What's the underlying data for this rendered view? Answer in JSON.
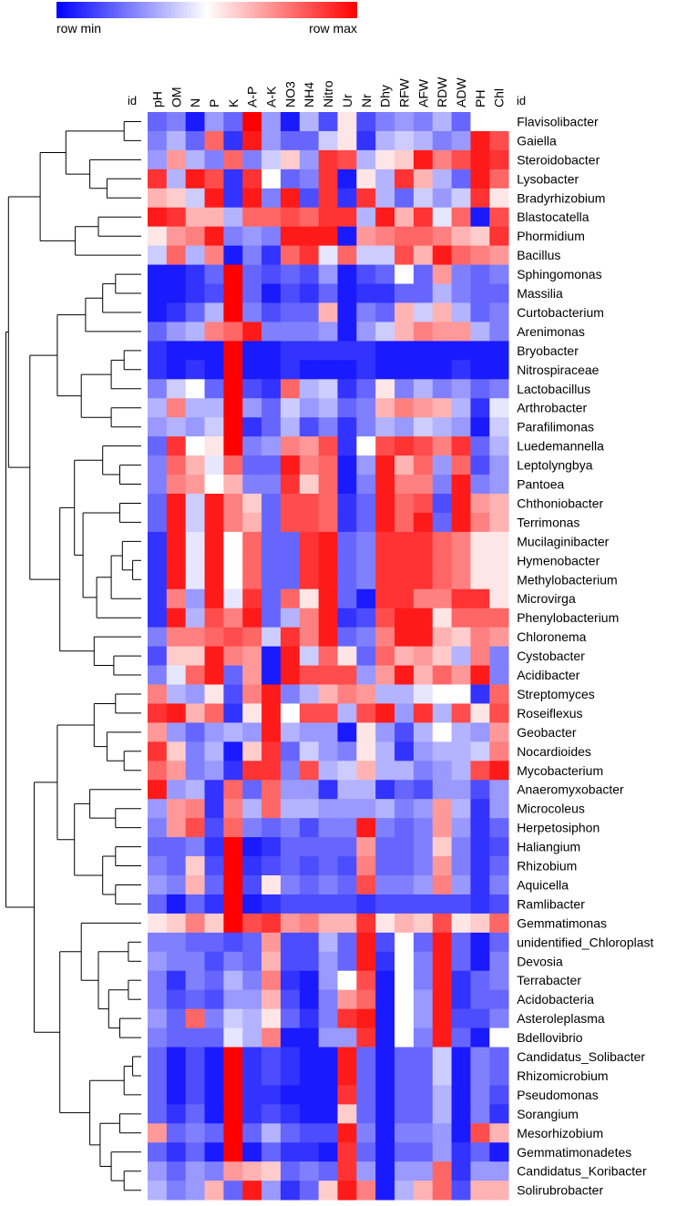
{
  "chart_data": {
    "type": "heatmap",
    "title": "",
    "legend": {
      "min_label": "row min",
      "max_label": "row max",
      "placement": "top-left"
    },
    "colors": {
      "low": "#0000ff",
      "mid": "#ffffff",
      "high": "#ff0000"
    },
    "id_label": "id",
    "columns": [
      "pH",
      "OM",
      "N",
      "P",
      "K",
      "A-P",
      "A-K",
      "NO3",
      "NH4",
      "Nitro",
      "Ur",
      "Nr",
      "Dhy",
      "RFW",
      "AFW",
      "RDW",
      "ADW",
      "PH",
      "Chl"
    ],
    "rows": [
      "Flavisolibacter",
      "Gaiella",
      "Steroidobacter",
      "Lysobacter",
      "Bradyrhizobium",
      "Blastocatella",
      "Phormidium",
      "Bacillus",
      "Sphingomonas",
      "Massilia",
      "Curtobacterium",
      "Arenimonas",
      "Bryobacter",
      "Nitrospiraceae",
      "Lactobacillus",
      "Arthrobacter",
      "Parafilimonas",
      "Luedemannella",
      "Leptolyngbya",
      "Pantoea",
      "Chthoniobacter",
      "Terrimonas",
      "Mucilaginibacter",
      "Hymenobacter",
      "Methylobacterium",
      "Microvirga",
      "Phenylobacterium",
      "Chloronema",
      "Cystobacter",
      "Acidibacter",
      "Streptomyces",
      "Roseiflexus",
      "Geobacter",
      "Nocardioides",
      "Mycobacterium",
      "Anaeromyxobacter",
      "Microcoleus",
      "Herpetosiphon",
      "Haliangium",
      "Rhizobium",
      "Aquicella",
      "Ramlibacter",
      "Gemmatimonas",
      "unidentified_Chloroplast",
      "Devosia",
      "Terrabacter",
      "Acidobacteria",
      "Asteroleplasma",
      "Bdellovibrio",
      "Candidatus_Solibacter",
      "Rhizomicrobium",
      "Pseudomonas",
      "Sorangium",
      "Mesorhizobium",
      "Gemmatimonadetes",
      "Candidatus_Koribacter",
      "Solirubrobacter"
    ],
    "values": [
      [
        -0.6,
        -0.5,
        -0.9,
        -0.4,
        -0.6,
        1.0,
        -0.4,
        -0.9,
        -0.3,
        -0.7,
        0.1,
        -0.7,
        -0.5,
        -0.4,
        -0.5,
        -0.3,
        -0.6,
        0.0,
        0.0
      ],
      [
        -0.5,
        -0.3,
        -0.6,
        0.6,
        -0.8,
        0.9,
        -0.4,
        -0.6,
        -0.6,
        -0.2,
        0.1,
        -0.8,
        -0.3,
        -0.2,
        -0.3,
        -0.5,
        -0.4,
        0.9,
        0.7
      ],
      [
        -0.4,
        0.4,
        -0.3,
        -0.5,
        0.6,
        -0.5,
        -0.2,
        0.2,
        -0.4,
        0.8,
        0.7,
        -0.3,
        0.1,
        0.2,
        0.9,
        0.5,
        0.7,
        0.9,
        0.8
      ],
      [
        0.8,
        -0.3,
        0.9,
        0.7,
        -0.8,
        0.8,
        0.0,
        -0.6,
        -0.5,
        0.8,
        -0.9,
        0.1,
        -0.3,
        0.8,
        0.3,
        -0.3,
        -0.6,
        0.9,
        0.6
      ],
      [
        0.3,
        0.2,
        -0.2,
        0.9,
        -0.8,
        0.9,
        -0.5,
        0.9,
        -0.7,
        0.8,
        -0.8,
        0.8,
        -0.3,
        -0.6,
        -0.2,
        -0.4,
        -0.2,
        0.8,
        0.1
      ],
      [
        0.9,
        0.8,
        0.3,
        0.3,
        -0.3,
        0.6,
        0.6,
        0.7,
        0.6,
        0.8,
        0.8,
        -0.3,
        0.9,
        0.3,
        0.8,
        -0.1,
        0.6,
        -0.9,
        0.7
      ],
      [
        0.1,
        0.4,
        0.5,
        0.9,
        -0.5,
        -0.4,
        -0.5,
        0.9,
        0.9,
        0.9,
        -0.9,
        0.4,
        0.5,
        0.6,
        0.6,
        0.5,
        0.3,
        0.2,
        0.8
      ],
      [
        -0.2,
        0.6,
        -0.3,
        0.5,
        -0.9,
        -0.5,
        -0.8,
        0.6,
        0.8,
        -0.1,
        0.6,
        -0.2,
        -0.2,
        0.7,
        0.3,
        0.9,
        0.6,
        0.5,
        0.4
      ],
      [
        -0.9,
        -0.9,
        -0.8,
        -0.6,
        1.0,
        -0.6,
        -0.7,
        -0.6,
        -0.7,
        -0.4,
        -0.9,
        -0.7,
        -0.6,
        0.0,
        -0.6,
        0.4,
        -0.5,
        -0.6,
        -0.5
      ],
      [
        -0.9,
        -0.9,
        -0.8,
        -0.7,
        1.0,
        -0.6,
        -0.9,
        -0.7,
        -0.8,
        -0.6,
        -0.9,
        -0.8,
        -0.8,
        -0.6,
        -0.6,
        -0.3,
        -0.5,
        -0.6,
        -0.6
      ],
      [
        -0.9,
        -0.8,
        -0.6,
        -0.3,
        1.0,
        -0.5,
        -0.7,
        -0.6,
        -0.6,
        0.3,
        -0.9,
        -0.5,
        -0.6,
        0.3,
        -0.2,
        0.3,
        -0.3,
        -0.6,
        -0.5
      ],
      [
        -0.6,
        -0.4,
        -0.3,
        0.5,
        0.6,
        0.9,
        -0.5,
        -0.5,
        -0.5,
        -0.4,
        -0.9,
        -0.4,
        -0.2,
        0.3,
        0.5,
        0.4,
        0.4,
        -0.3,
        -0.5
      ],
      [
        -0.8,
        -0.9,
        -0.9,
        -0.9,
        1.0,
        -0.9,
        -0.9,
        -0.8,
        -0.8,
        -0.8,
        -0.8,
        -0.8,
        -0.9,
        -0.9,
        -0.9,
        -0.9,
        -0.9,
        -0.9,
        -0.9
      ],
      [
        -0.8,
        -0.9,
        -0.8,
        -0.9,
        1.0,
        -0.9,
        -0.9,
        -0.8,
        -0.9,
        -0.9,
        -0.9,
        -0.8,
        -0.9,
        -0.9,
        -0.9,
        -0.9,
        -0.8,
        -0.9,
        -0.9
      ],
      [
        -0.5,
        -0.2,
        0.0,
        -0.6,
        1.0,
        -0.7,
        -0.8,
        0.6,
        -0.3,
        -0.2,
        -0.8,
        -0.6,
        0.1,
        -0.5,
        -0.3,
        -0.5,
        -0.4,
        -0.6,
        -0.5
      ],
      [
        -0.3,
        0.5,
        -0.3,
        -0.3,
        1.0,
        -0.4,
        -0.6,
        -0.2,
        -0.4,
        -0.3,
        -0.6,
        -0.5,
        0.3,
        0.5,
        0.4,
        0.3,
        -0.3,
        -0.8,
        -0.1
      ],
      [
        -0.4,
        -0.3,
        -0.4,
        -0.2,
        1.0,
        -0.8,
        -0.6,
        -0.3,
        -0.7,
        -0.5,
        -0.8,
        -0.5,
        -0.3,
        -0.4,
        -0.2,
        -0.3,
        -0.4,
        -0.9,
        -0.2
      ],
      [
        -0.6,
        0.8,
        0.0,
        0.1,
        1.0,
        -0.5,
        -0.4,
        0.5,
        0.4,
        0.7,
        -0.8,
        0.0,
        0.7,
        0.8,
        0.7,
        0.5,
        0.8,
        -0.6,
        -0.3
      ],
      [
        -0.5,
        0.6,
        0.3,
        -0.1,
        0.6,
        -0.6,
        -0.6,
        0.9,
        0.5,
        0.6,
        -0.9,
        -0.4,
        0.9,
        0.3,
        0.6,
        -0.4,
        0.6,
        -0.7,
        -0.4
      ],
      [
        -0.5,
        0.5,
        0.4,
        0.0,
        0.3,
        -0.5,
        -0.5,
        0.8,
        0.2,
        0.6,
        -0.9,
        -0.5,
        0.9,
        0.5,
        0.5,
        -0.5,
        0.9,
        -0.5,
        -0.4
      ],
      [
        -0.6,
        0.9,
        -0.2,
        0.9,
        0.5,
        0.2,
        -0.6,
        0.7,
        0.7,
        0.6,
        -0.8,
        -0.6,
        0.9,
        0.6,
        0.7,
        -0.7,
        0.9,
        0.4,
        0.3
      ],
      [
        -0.6,
        0.9,
        -0.2,
        0.9,
        0.5,
        0.3,
        -0.6,
        0.7,
        0.7,
        0.6,
        -0.8,
        -0.6,
        0.9,
        0.6,
        0.9,
        -0.6,
        0.9,
        0.5,
        0.3
      ],
      [
        -0.8,
        0.9,
        -0.1,
        0.9,
        0.0,
        0.6,
        -0.6,
        -0.6,
        0.8,
        0.9,
        -0.6,
        -0.5,
        0.8,
        0.8,
        0.8,
        0.6,
        0.5,
        0.1,
        0.1
      ],
      [
        -0.8,
        0.9,
        -0.1,
        0.9,
        0.0,
        0.6,
        -0.6,
        -0.6,
        0.8,
        0.9,
        -0.6,
        -0.5,
        0.8,
        0.8,
        0.8,
        0.6,
        0.5,
        0.1,
        0.1
      ],
      [
        -0.8,
        0.9,
        -0.1,
        0.9,
        0.0,
        0.6,
        -0.6,
        -0.6,
        0.8,
        0.9,
        -0.6,
        -0.5,
        0.8,
        0.8,
        0.8,
        0.6,
        0.5,
        0.1,
        0.1
      ],
      [
        -0.8,
        0.5,
        -0.4,
        0.9,
        -0.1,
        0.8,
        -0.6,
        0.6,
        0.1,
        0.9,
        -0.6,
        -0.9,
        0.8,
        0.8,
        0.5,
        0.5,
        0.8,
        0.8,
        0.1
      ],
      [
        -0.8,
        0.9,
        -0.3,
        0.7,
        0.5,
        0.9,
        -0.6,
        -0.3,
        0.5,
        0.9,
        -0.8,
        -0.7,
        0.7,
        0.9,
        0.9,
        0.1,
        0.6,
        0.6,
        0.6
      ],
      [
        -0.5,
        0.5,
        0.5,
        0.6,
        0.7,
        0.6,
        -0.2,
        0.8,
        0.5,
        0.9,
        -0.6,
        -0.5,
        0.5,
        0.9,
        0.9,
        0.3,
        0.2,
        0.5,
        0.4
      ],
      [
        -0.7,
        0.2,
        0.2,
        0.9,
        0.5,
        0.4,
        -0.9,
        0.9,
        -0.2,
        0.6,
        0.1,
        -0.6,
        0.6,
        0.3,
        0.4,
        0.2,
        -0.3,
        0.5,
        -0.5
      ],
      [
        -0.5,
        -0.1,
        0.6,
        0.9,
        -0.6,
        0.4,
        -0.9,
        0.9,
        0.7,
        0.7,
        0.7,
        -0.4,
        0.4,
        0.9,
        0.3,
        0.6,
        0.4,
        0.9,
        -0.5
      ],
      [
        0.5,
        -0.3,
        -0.4,
        0.1,
        -0.7,
        0.5,
        0.9,
        -0.5,
        -0.3,
        0.3,
        0.5,
        0.4,
        -0.3,
        -0.3,
        -0.1,
        0.0,
        0.0,
        -0.8,
        0.6
      ],
      [
        0.8,
        0.9,
        0.3,
        0.6,
        -0.8,
        0.1,
        0.9,
        0.0,
        0.7,
        0.7,
        -0.3,
        0.7,
        0.9,
        -0.4,
        0.8,
        -0.3,
        0.7,
        0.1,
        0.7
      ],
      [
        0.4,
        -0.4,
        -0.6,
        -0.4,
        -0.3,
        -0.4,
        0.9,
        -0.3,
        -0.4,
        -0.4,
        -0.9,
        0.1,
        -0.4,
        -0.7,
        -0.3,
        0.0,
        -0.3,
        -0.4,
        0.4
      ],
      [
        0.8,
        0.2,
        -0.5,
        -0.3,
        -0.9,
        0.2,
        0.8,
        -0.6,
        -0.2,
        -0.4,
        -0.5,
        0.1,
        -0.3,
        -0.8,
        -0.4,
        -0.3,
        -0.3,
        -0.2,
        0.5
      ],
      [
        0.6,
        0.4,
        -0.5,
        -0.4,
        -0.8,
        0.8,
        0.8,
        -0.5,
        0.7,
        -0.3,
        -0.2,
        0.3,
        -0.3,
        -0.3,
        -0.5,
        -0.4,
        -0.3,
        0.7,
        0.9
      ],
      [
        0.9,
        -0.4,
        -0.3,
        -0.8,
        0.6,
        -0.6,
        0.6,
        -0.4,
        -0.4,
        -0.8,
        -0.3,
        -0.3,
        -0.8,
        -0.6,
        -0.7,
        -0.4,
        -0.4,
        -0.7,
        -0.4
      ],
      [
        -0.4,
        0.4,
        0.5,
        -0.8,
        0.5,
        -0.3,
        0.6,
        -0.3,
        -0.3,
        -0.4,
        -0.4,
        -0.4,
        -0.3,
        -0.5,
        -0.4,
        0.4,
        -0.3,
        -0.8,
        -0.4
      ],
      [
        -0.5,
        0.4,
        0.7,
        -0.7,
        0.6,
        -0.5,
        -0.6,
        -0.5,
        -0.7,
        -0.5,
        -0.5,
        0.9,
        -0.5,
        -0.6,
        -0.5,
        0.4,
        -0.4,
        -0.8,
        -0.6
      ],
      [
        -0.6,
        -0.6,
        -0.5,
        -0.8,
        1.0,
        -0.9,
        -0.8,
        -0.6,
        -0.6,
        -0.6,
        -0.6,
        0.4,
        -0.6,
        -0.6,
        -0.5,
        0.2,
        -0.5,
        -0.8,
        -0.7
      ],
      [
        -0.5,
        -0.6,
        0.2,
        -0.7,
        1.0,
        -0.8,
        -0.7,
        -0.6,
        -0.7,
        -0.6,
        -0.7,
        0.5,
        -0.6,
        -0.6,
        -0.5,
        0.4,
        -0.5,
        -0.8,
        -0.6
      ],
      [
        -0.4,
        -0.5,
        0.3,
        -0.6,
        1.0,
        -0.7,
        0.1,
        -0.5,
        -0.6,
        -0.5,
        -0.6,
        0.7,
        -0.5,
        -0.5,
        -0.4,
        0.5,
        -0.4,
        -0.8,
        -0.5
      ],
      [
        -0.6,
        -0.9,
        -0.6,
        -0.8,
        1.0,
        -0.9,
        -0.8,
        -0.7,
        -0.7,
        -0.7,
        -0.7,
        -0.8,
        -0.7,
        -0.7,
        -0.7,
        -0.7,
        -0.7,
        -0.8,
        -0.7
      ],
      [
        0.1,
        0.2,
        0.5,
        0.2,
        1.0,
        0.7,
        0.8,
        0.4,
        0.5,
        0.3,
        0.3,
        0.8,
        0.1,
        0.3,
        0.2,
        0.7,
        0.1,
        0.2,
        0.6
      ],
      [
        -0.5,
        -0.5,
        -0.6,
        -0.6,
        -0.7,
        -0.6,
        0.4,
        -0.7,
        -0.7,
        -0.3,
        -0.6,
        0.9,
        -0.7,
        0.0,
        -0.6,
        0.9,
        -0.6,
        -0.9,
        -0.6
      ],
      [
        -0.4,
        -0.5,
        -0.5,
        -0.7,
        -0.5,
        -0.6,
        0.3,
        -0.7,
        -0.7,
        -0.4,
        -0.6,
        0.9,
        -0.8,
        0.0,
        -0.5,
        0.9,
        -0.6,
        -0.9,
        -0.5
      ],
      [
        -0.5,
        -0.8,
        -0.5,
        -0.6,
        -0.3,
        -0.5,
        0.5,
        -0.8,
        -0.9,
        -0.4,
        0.0,
        0.7,
        -0.9,
        0.0,
        -0.5,
        0.9,
        -0.8,
        -0.6,
        -0.5
      ],
      [
        -0.5,
        -0.7,
        -0.6,
        -0.7,
        -0.4,
        -0.4,
        0.3,
        -0.7,
        -0.9,
        -0.5,
        0.4,
        0.6,
        -0.9,
        0.0,
        -0.4,
        0.9,
        -0.8,
        -0.6,
        -0.6
      ],
      [
        -0.4,
        -0.6,
        0.6,
        -0.5,
        -0.2,
        -0.3,
        0.1,
        -0.6,
        -0.8,
        -0.5,
        0.8,
        0.9,
        -0.9,
        0.0,
        -0.4,
        0.9,
        -0.7,
        -0.7,
        -0.5
      ],
      [
        -0.5,
        -0.6,
        -0.6,
        -0.6,
        -0.1,
        -0.3,
        0.5,
        -0.9,
        -0.9,
        -0.4,
        -0.4,
        0.8,
        -0.9,
        0.0,
        -0.5,
        0.9,
        -0.6,
        -0.9,
        0.0
      ],
      [
        -0.6,
        -0.9,
        -0.7,
        -0.9,
        1.0,
        -0.8,
        -0.7,
        -0.8,
        -0.9,
        -0.9,
        0.9,
        -0.6,
        -0.9,
        -0.6,
        -0.6,
        -0.2,
        -0.9,
        -0.5,
        -0.6
      ],
      [
        -0.6,
        -0.9,
        -0.7,
        -0.9,
        1.0,
        -0.8,
        -0.7,
        -0.8,
        -0.9,
        -0.9,
        0.9,
        -0.6,
        -0.9,
        -0.6,
        -0.6,
        -0.2,
        -0.9,
        -0.5,
        -0.6
      ],
      [
        -0.6,
        -0.9,
        -0.7,
        -0.9,
        1.0,
        -0.8,
        -0.8,
        -0.9,
        -0.9,
        -0.9,
        0.8,
        -0.6,
        -0.9,
        -0.6,
        -0.6,
        -0.3,
        -0.9,
        -0.5,
        -0.7
      ],
      [
        -0.6,
        -0.8,
        -0.6,
        -0.9,
        1.0,
        -0.8,
        -0.7,
        -0.8,
        -0.9,
        -0.9,
        0.2,
        -0.6,
        -0.9,
        -0.6,
        -0.6,
        -0.3,
        -0.9,
        -0.5,
        -0.8
      ],
      [
        0.4,
        -0.6,
        -0.5,
        -0.6,
        1.0,
        -0.6,
        -0.3,
        -0.6,
        -0.7,
        -0.7,
        0.9,
        -0.5,
        -0.9,
        -0.5,
        -0.5,
        -0.4,
        -0.9,
        0.7,
        0.3
      ],
      [
        -0.6,
        -0.8,
        -0.6,
        -0.9,
        1.0,
        -0.9,
        -0.6,
        -0.8,
        -0.8,
        -0.9,
        0.8,
        -0.6,
        -0.9,
        -0.6,
        -0.6,
        -0.4,
        -0.8,
        -0.6,
        -0.9
      ],
      [
        -0.4,
        -0.6,
        -0.4,
        -0.5,
        0.4,
        0.3,
        0.2,
        -0.6,
        -0.5,
        -0.6,
        0.8,
        -0.4,
        -0.9,
        -0.4,
        -0.4,
        0.6,
        -0.8,
        -0.4,
        -0.4
      ],
      [
        -0.3,
        -0.5,
        -0.4,
        0.3,
        -0.6,
        0.9,
        -0.4,
        -0.8,
        -0.6,
        0.2,
        0.9,
        0.5,
        -0.9,
        -0.3,
        0.3,
        0.6,
        -0.7,
        0.3,
        0.3
      ]
    ]
  }
}
